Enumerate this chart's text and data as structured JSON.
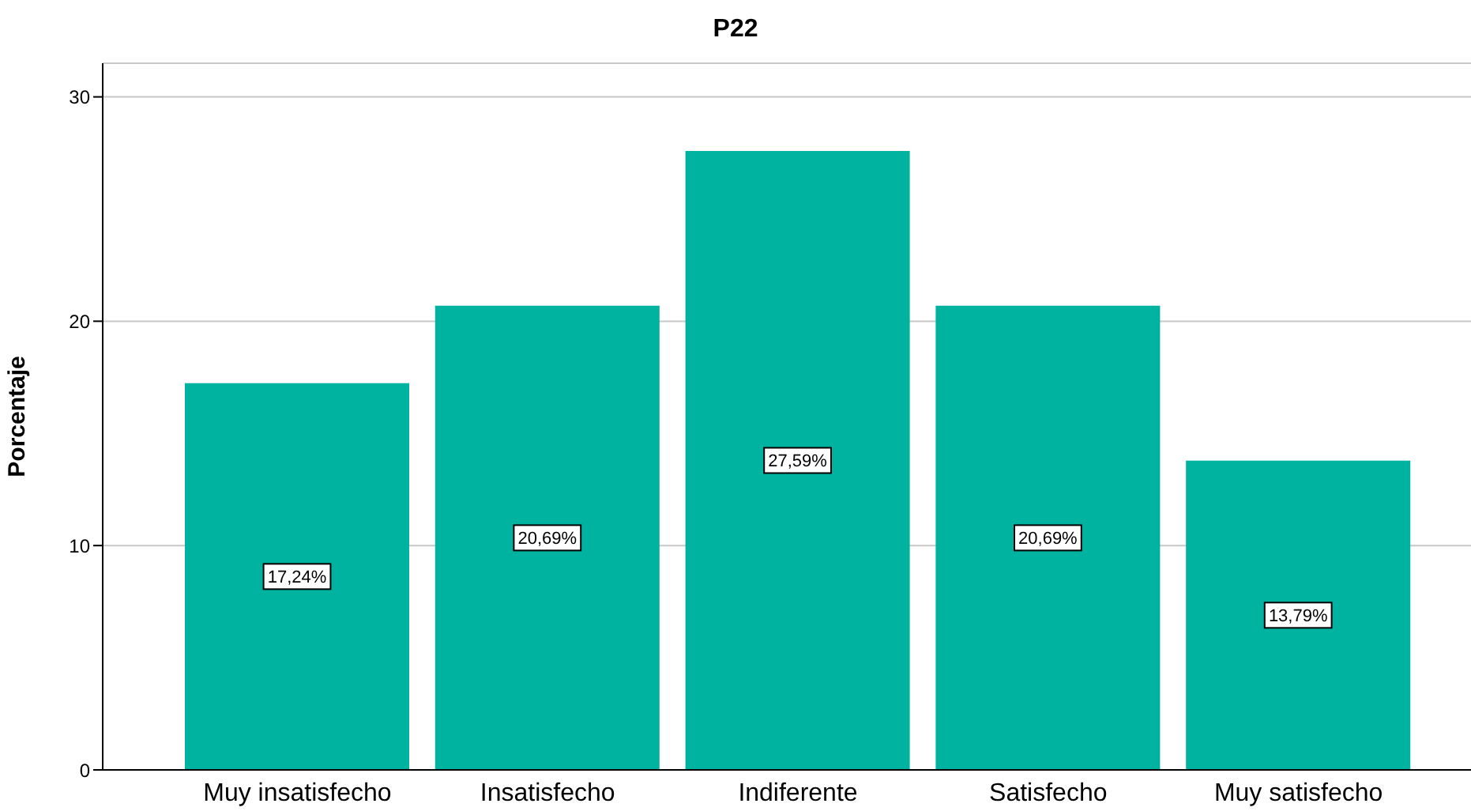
{
  "chart_data": {
    "type": "bar",
    "title": "P22",
    "ylabel": "Porcentaje",
    "categories": [
      "Muy insatisfecho",
      "Insatisfecho",
      "Indiferente",
      "Satisfecho",
      "Muy satisfecho"
    ],
    "values": [
      17.24,
      20.69,
      27.59,
      20.69,
      13.79
    ],
    "value_labels": [
      "17,24%",
      "20,69%",
      "27,59%",
      "20,69%",
      "13,79%"
    ],
    "color": "#00b2a0",
    "ylim": [
      0,
      31.5
    ],
    "yticks": [
      0,
      10,
      20,
      30
    ],
    "grid": "y"
  }
}
